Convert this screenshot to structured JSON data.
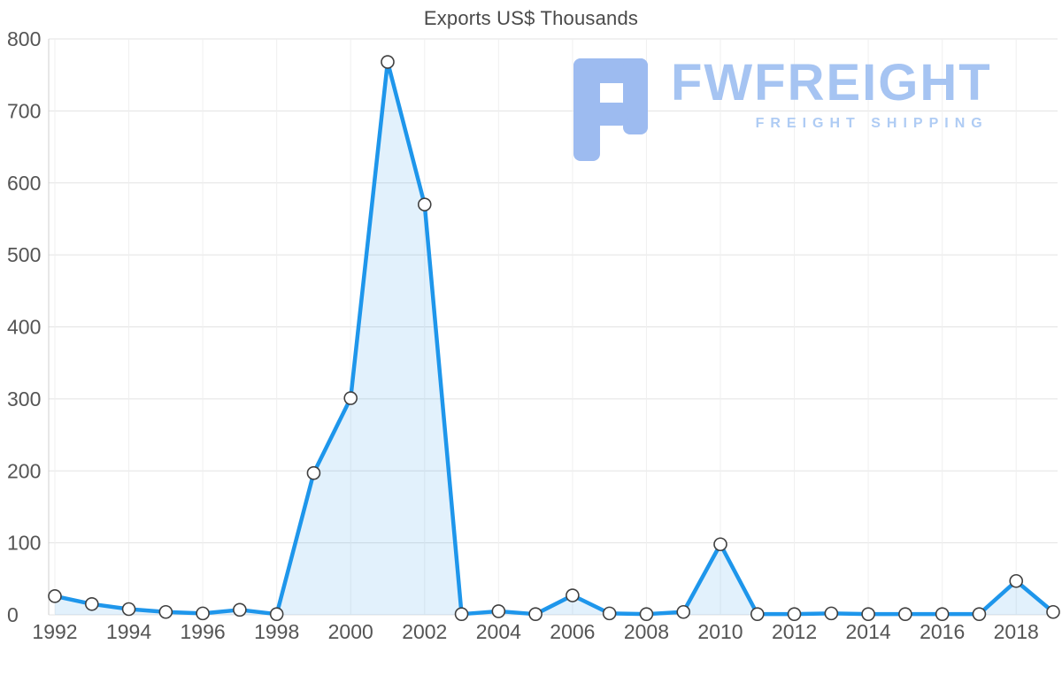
{
  "page": {
    "title": "Exports US$ Thousands"
  },
  "logo": {
    "brand": "FWFREIGHT",
    "tagline": "FREIGHT SHIPPING",
    "brand_color": "#a6c4f2",
    "tagline_color": "#afccf4",
    "icon_color": "#9dbbf0"
  },
  "chart_data": {
    "type": "area",
    "title": "Exports US$ Thousands",
    "x": [
      1992,
      1993,
      1994,
      1995,
      1996,
      1997,
      1998,
      1999,
      2000,
      2001,
      2002,
      2003,
      2004,
      2005,
      2006,
      2007,
      2008,
      2009,
      2010,
      2011,
      2012,
      2013,
      2014,
      2015,
      2016,
      2017,
      2018,
      2019
    ],
    "values": [
      26,
      15,
      8,
      4,
      2,
      7,
      1,
      197,
      301,
      768,
      570,
      1,
      5,
      1,
      27,
      2,
      1,
      4,
      98,
      1,
      1,
      2,
      1,
      1,
      1,
      1,
      47,
      4
    ],
    "xlabel": "",
    "ylabel": "",
    "ylim": [
      0,
      800
    ],
    "y_ticks": [
      0,
      100,
      200,
      300,
      400,
      500,
      600,
      700,
      800
    ],
    "x_tick_step": 2,
    "grid": true,
    "legend": "none",
    "line_color": "#1e96eb",
    "fill_color": "rgba(30,150,235,0.13)",
    "marker_fill": "#ffffff",
    "marker_stroke": "#404040",
    "grid_color": "#e3e3e3",
    "axis_color": "#cfcfcf",
    "tick_label_color": "#555555"
  }
}
